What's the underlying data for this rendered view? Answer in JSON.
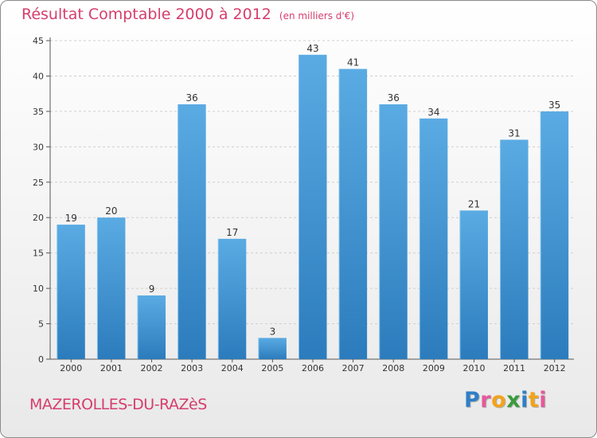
{
  "title": "Résultat Comptable 2000 à 2012",
  "subtitle": "(en milliers d'€)",
  "commune": "MAZEROLLES-DU-RAZèS",
  "logo": {
    "text": "Proxiti",
    "letters": [
      {
        "char": "P",
        "color": "#2f7fc6"
      },
      {
        "char": "r",
        "color": "#e45a9a"
      },
      {
        "char": "o",
        "color": "#f2a31b"
      },
      {
        "char": "x",
        "color": "#3b9b3b"
      },
      {
        "char": "i",
        "color": "#2f7fc6"
      },
      {
        "char": "t",
        "color": "#f2a31b"
      },
      {
        "char": "i",
        "color": "#e45a9a"
      }
    ]
  },
  "colors": {
    "accent": "#d63d6d",
    "bar_top": "#5aabe3",
    "bar_bottom": "#2c7cbd",
    "grid": "#cfcfcf"
  },
  "chart_data": {
    "type": "bar",
    "title": "Résultat Comptable 2000 à 2012",
    "subtitle": "(en milliers d'€)",
    "xlabel": "",
    "ylabel": "",
    "categories": [
      "2000",
      "2001",
      "2002",
      "2003",
      "2004",
      "2005",
      "2006",
      "2007",
      "2008",
      "2009",
      "2010",
      "2011",
      "2012"
    ],
    "values": [
      19,
      20,
      9,
      36,
      17,
      3,
      43,
      41,
      36,
      34,
      21,
      31,
      35
    ],
    "ylim": [
      0,
      45
    ],
    "yticks": [
      0,
      5,
      10,
      15,
      20,
      25,
      30,
      35,
      40,
      45
    ],
    "grid": true,
    "data_labels": true
  }
}
